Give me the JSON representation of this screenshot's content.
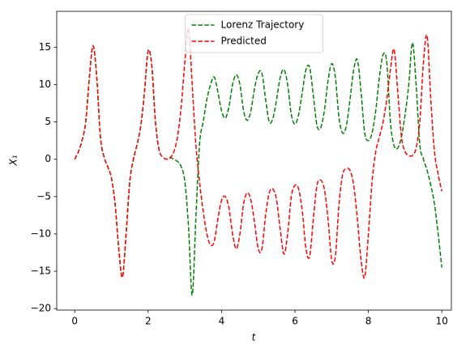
{
  "chart_data": {
    "type": "line",
    "xlabel": "t",
    "ylabel": "X₁",
    "x": [
      0,
      0.1,
      0.2,
      0.3,
      0.4,
      0.5,
      0.6,
      0.7,
      0.8,
      0.9,
      1.0,
      1.1,
      1.2,
      1.3,
      1.4,
      1.5,
      1.6,
      1.7,
      1.8,
      1.9,
      2.0,
      2.1,
      2.2,
      2.3,
      2.4,
      2.5,
      2.6,
      2.7,
      2.8,
      2.9,
      3.0,
      3.1,
      3.2,
      3.3,
      3.4,
      3.5,
      3.6,
      3.7,
      3.8,
      3.9,
      4.0,
      4.1,
      4.2,
      4.3,
      4.4,
      4.5,
      4.6,
      4.7,
      4.8,
      4.9,
      5.0,
      5.1,
      5.2,
      5.3,
      5.4,
      5.5,
      5.6,
      5.7,
      5.8,
      5.9,
      6.0,
      6.1,
      6.2,
      6.3,
      6.4,
      6.5,
      6.6,
      6.7,
      6.8,
      6.9,
      7.0,
      7.1,
      7.2,
      7.3,
      7.4,
      7.5,
      7.6,
      7.7,
      7.8,
      7.9,
      8.0,
      8.1,
      8.2,
      8.3,
      8.4,
      8.5,
      8.6,
      8.7,
      8.8,
      8.9,
      9.0,
      9.1,
      9.2,
      9.3,
      9.4,
      9.5,
      9.6,
      9.7,
      9.8,
      9.9,
      10.0
    ],
    "series": [
      {
        "name": "Lorenz Trajectory",
        "color": "#008000",
        "values": [
          0,
          1,
          2.5,
          5,
          11,
          15.2,
          11,
          3,
          0.3,
          -1,
          -2.5,
          -6,
          -12,
          -15.8,
          -10,
          -3,
          0,
          2,
          4.5,
          9,
          14.5,
          12.5,
          5,
          1.2,
          0.3,
          0,
          0.2,
          0,
          -0.3,
          -1,
          -3,
          -9,
          -18.2,
          -8,
          2,
          5,
          8,
          10,
          11,
          9,
          6.5,
          5.5,
          7,
          10,
          11.3,
          10,
          6.5,
          5.2,
          6.5,
          9.5,
          11.5,
          11.5,
          8,
          5,
          5.5,
          8,
          11,
          12,
          10,
          6,
          4.7,
          6,
          9,
          12,
          12.3,
          8.5,
          4.5,
          4.2,
          6.5,
          10.5,
          12.8,
          11,
          5.5,
          3.5,
          4.5,
          8,
          12,
          13.3,
          9,
          3.5,
          2.5,
          3.5,
          6.5,
          11,
          14,
          13,
          5,
          1.8,
          1.5,
          3,
          6,
          10,
          15.6,
          10,
          2,
          0,
          -1.5,
          -3.5,
          -6,
          -10,
          -14.5
        ]
      },
      {
        "name": "Predicted",
        "color": "#ff0000",
        "values": [
          0,
          1,
          2.5,
          5,
          11,
          15.2,
          11,
          3,
          0.3,
          -1,
          -2.5,
          -6,
          -12,
          -15.8,
          -10,
          -3,
          0,
          2,
          4.5,
          9,
          14.5,
          12.5,
          5,
          1.2,
          0.3,
          0,
          0.2,
          1,
          3,
          7,
          13,
          17.5,
          10,
          2,
          -3,
          -7,
          -10,
          -11.5,
          -11,
          -8,
          -5.5,
          -5,
          -6.5,
          -10,
          -12,
          -10,
          -6,
          -4.5,
          -5.5,
          -8.5,
          -12,
          -12,
          -7.5,
          -4.5,
          -4,
          -5.5,
          -9.5,
          -12.7,
          -10,
          -5,
          -3.5,
          -4,
          -7,
          -12,
          -13,
          -8,
          -3.5,
          -2.8,
          -4,
          -8,
          -13.5,
          -13,
          -6,
          -2,
          -1.3,
          -1.5,
          -3.5,
          -8,
          -13.5,
          -15.8,
          -10,
          -3,
          1,
          3,
          5,
          8,
          12,
          14.7,
          9,
          3,
          1,
          0.5,
          0.5,
          1.5,
          5,
          13,
          16.5,
          8,
          1,
          -2,
          -4.3
        ]
      }
    ],
    "xlim": [
      -0.49,
      10.26
    ],
    "ylim": [
      -20.2,
      19.8
    ],
    "xticks": [
      0,
      2,
      4,
      6,
      8,
      10
    ],
    "yticks": [
      {
        "value": -20,
        "label": "−20"
      },
      {
        "value": -15,
        "label": "−15"
      },
      {
        "value": -10,
        "label": "−10"
      },
      {
        "value": -5,
        "label": "−5"
      },
      0,
      5,
      10,
      15
    ],
    "legend": "upper center",
    "grid": false
  }
}
